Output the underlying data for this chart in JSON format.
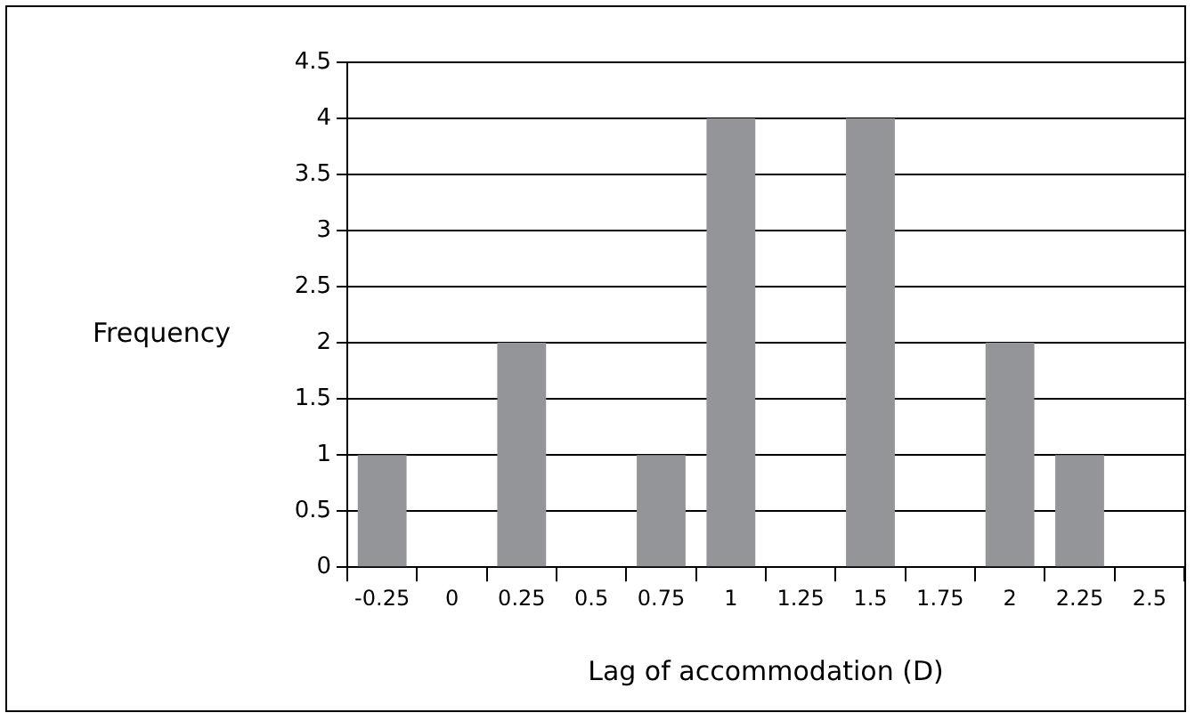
{
  "chart_data": {
    "type": "bar",
    "xlabel": "Lag of accommodation (D)",
    "ylabel": "Frequency",
    "categories": [
      "-0.25",
      "0",
      "0.25",
      "0.5",
      "0.75",
      "1",
      "1.25",
      "1.5",
      "1.75",
      "2",
      "2.25",
      "2.5"
    ],
    "values": [
      1,
      0,
      2,
      0,
      1,
      4,
      0,
      4,
      0,
      2,
      1,
      0
    ],
    "color": "#939598",
    "ylim": [
      0,
      4.5
    ],
    "yticks": [
      0,
      0.5,
      1,
      1.5,
      2,
      2.5,
      3,
      3.5,
      4,
      4.5
    ],
    "grid": "y",
    "legend": false
  }
}
